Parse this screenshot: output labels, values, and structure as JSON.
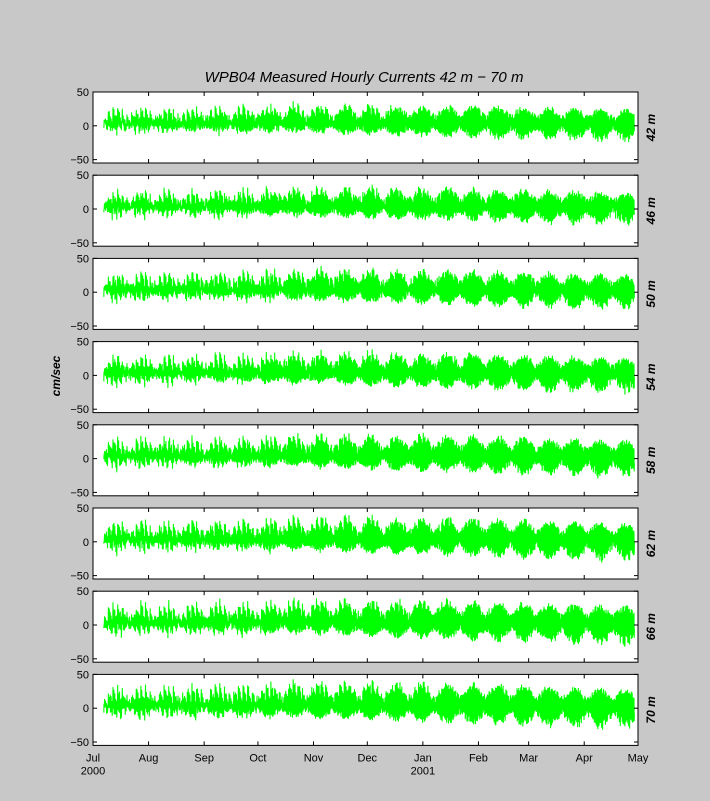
{
  "chart_data": {
    "type": "line",
    "title": "WPB04   Measured Hourly Currents   42 m  −  70 m",
    "ylabel": "cm/sec",
    "ylim": [
      -55,
      50
    ],
    "yticks": [
      "50",
      "0",
      "−50"
    ],
    "ytick_values": [
      50,
      0,
      -50
    ],
    "x_start": "2000-07-01",
    "x_end": "2001-05-01",
    "xticks": [
      {
        "label": "Jul",
        "year": "2000",
        "date": "2000-07-01"
      },
      {
        "label": "Aug",
        "year": "",
        "date": "2000-08-01"
      },
      {
        "label": "Sep",
        "year": "",
        "date": "2000-09-01"
      },
      {
        "label": "Oct",
        "year": "",
        "date": "2000-10-01"
      },
      {
        "label": "Nov",
        "year": "",
        "date": "2000-11-01"
      },
      {
        "label": "Dec",
        "year": "",
        "date": "2000-12-01"
      },
      {
        "label": "Jan",
        "year": "2001",
        "date": "2001-01-01"
      },
      {
        "label": "Feb",
        "year": "",
        "date": "2001-02-01"
      },
      {
        "label": "Mar",
        "year": "",
        "date": "2001-03-01"
      },
      {
        "label": "Apr",
        "year": "",
        "date": "2001-04-01"
      },
      {
        "label": "May",
        "year": "",
        "date": "2001-05-01"
      }
    ],
    "data_start": "2000-07-07",
    "data_end": "2001-04-29",
    "line_color": "#00ff00",
    "grid": false,
    "series": [
      {
        "name": "42 m",
        "amplitude": 28
      },
      {
        "name": "46 m",
        "amplitude": 29
      },
      {
        "name": "50 m",
        "amplitude": 31
      },
      {
        "name": "54 m",
        "amplitude": 32
      },
      {
        "name": "58 m",
        "amplitude": 33
      },
      {
        "name": "62 m",
        "amplitude": 34
      },
      {
        "name": "66 m",
        "amplitude": 35
      },
      {
        "name": "70 m",
        "amplitude": 36
      }
    ]
  }
}
